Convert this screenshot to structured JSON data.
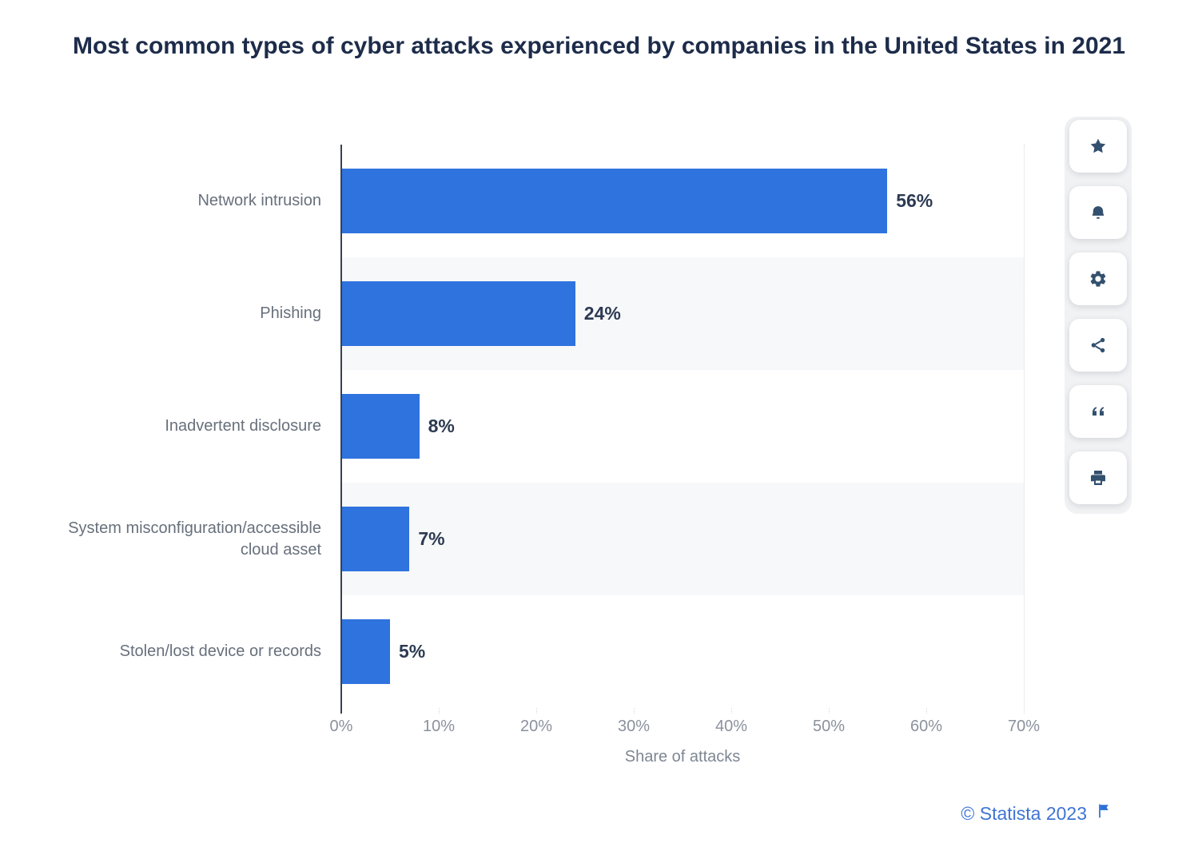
{
  "page": {
    "title": "Most common types of cyber attacks experienced by companies in the United States in 2021"
  },
  "chart_data": {
    "type": "bar",
    "orientation": "horizontal",
    "title": "Most common types of cyber attacks experienced by companies in the United States in 2021",
    "categories": [
      "Network intrusion",
      "Phishing",
      "Inadvertent disclosure",
      "System misconfiguration/accessible cloud asset",
      "Stolen/lost device or records"
    ],
    "values": [
      56,
      24,
      8,
      7,
      5
    ],
    "value_labels": [
      "56%",
      "24%",
      "8%",
      "7%",
      "5%"
    ],
    "xlabel": "Share of attacks",
    "ylabel": "",
    "x_ticks": [
      "0%",
      "10%",
      "20%",
      "30%",
      "40%",
      "50%",
      "60%",
      "70%"
    ],
    "xlim": [
      0,
      70
    ],
    "grid": "vertical-dotted",
    "legend": "none",
    "bar_color": "#2f73de",
    "band_colors": [
      "#ffffff",
      "#f7f8f9"
    ]
  },
  "toolbar": {
    "buttons": [
      {
        "name": "favorite",
        "icon": "star-icon"
      },
      {
        "name": "alerts",
        "icon": "bell-icon"
      },
      {
        "name": "settings",
        "icon": "gear-icon"
      },
      {
        "name": "share",
        "icon": "share-icon"
      },
      {
        "name": "cite",
        "icon": "quote-icon"
      },
      {
        "name": "print",
        "icon": "printer-icon"
      }
    ]
  },
  "footer": {
    "copyright": "© Statista 2023",
    "flag_icon": "flag-icon"
  },
  "colors": {
    "bar": "#2f73de",
    "title_text": "#1d2c4a",
    "category_label": "#67707c",
    "value_label": "#2c3a52",
    "tick_label": "#8a919d",
    "axis_line": "#39414f",
    "gridline": "#d6d8dd",
    "row_band": "#f7f8f9",
    "footer_link": "#3f74d3",
    "icon": "#33506e"
  }
}
